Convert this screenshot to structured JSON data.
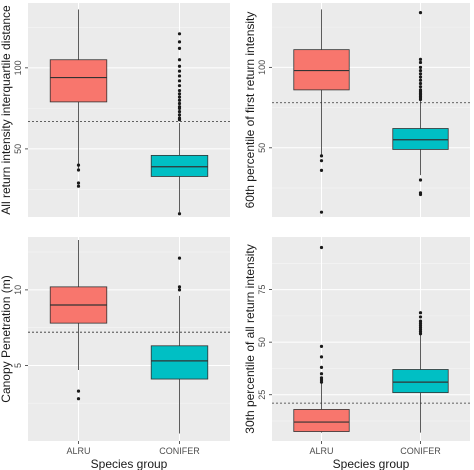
{
  "palette": {
    "ALRU": "#f8766d",
    "CONIFER": "#00bfc4"
  },
  "chart_data": [
    {
      "type": "box",
      "ylabel": "All return intensity interquartile distance",
      "xlabel": "",
      "categories": [
        "ALRU",
        "CONIFER"
      ],
      "yticks": [
        50,
        100
      ],
      "ylim": [
        8,
        140
      ],
      "reference_line": 67,
      "show_x_tick_labels": false,
      "boxes": [
        {
          "category": "ALRU",
          "whisker_low": 38,
          "q1": 79,
          "median": 94,
          "q3": 105,
          "whisker_high": 136,
          "outliers": [
            40,
            37,
            29,
            27
          ]
        },
        {
          "category": "CONIFER",
          "whisker_low": 11,
          "q1": 33,
          "median": 39,
          "q3": 46,
          "whisker_high": 66,
          "outliers": [
            121,
            116,
            112,
            105,
            101,
            98,
            95,
            92,
            89,
            86,
            84,
            82,
            80,
            78,
            76,
            75,
            73,
            71,
            69,
            68,
            10
          ]
        }
      ]
    },
    {
      "type": "box",
      "ylabel": "60th percentile of first return intensity",
      "xlabel": "",
      "categories": [
        "ALRU",
        "CONIFER"
      ],
      "yticks": [
        50,
        100
      ],
      "ylim": [
        7,
        140
      ],
      "reference_line": 78,
      "show_x_tick_labels": false,
      "boxes": [
        {
          "category": "ALRU",
          "whisker_low": 45,
          "q1": 86,
          "median": 98,
          "q3": 111,
          "whisker_high": 136,
          "outliers": [
            45,
            42,
            36,
            10
          ]
        },
        {
          "category": "CONIFER",
          "whisker_low": 33,
          "q1": 49,
          "median": 55,
          "q3": 62,
          "whisker_high": 79,
          "outliers": [
            134,
            105,
            103,
            100,
            98,
            96,
            94,
            92,
            90,
            88,
            86,
            85,
            84,
            83,
            82,
            81,
            80,
            30,
            22,
            21
          ]
        }
      ]
    },
    {
      "type": "box",
      "ylabel": "Canopy Penetration (m)",
      "xlabel": "Species group",
      "categories": [
        "ALRU",
        "CONIFER"
      ],
      "yticks": [
        5,
        10
      ],
      "ylim": [
        0,
        13.5
      ],
      "reference_line": 7.2,
      "show_x_tick_labels": true,
      "boxes": [
        {
          "category": "ALRU",
          "whisker_low": 4.7,
          "q1": 7.8,
          "median": 9.0,
          "q3": 10.2,
          "whisker_high": 13.3,
          "outliers": [
            3.3,
            2.8
          ]
        },
        {
          "category": "CONIFER",
          "whisker_low": 0.5,
          "q1": 4.1,
          "median": 5.3,
          "q3": 6.3,
          "whisker_high": 9.6,
          "outliers": [
            12.1,
            10.2,
            10.0
          ]
        }
      ]
    },
    {
      "type": "box",
      "ylabel": "30th percentile of all return intensity",
      "xlabel": "Species group",
      "categories": [
        "ALRU",
        "CONIFER"
      ],
      "yticks": [
        25,
        50,
        75
      ],
      "ylim": [
        3,
        100
      ],
      "reference_line": 21,
      "show_x_tick_labels": true,
      "boxes": [
        {
          "category": "ALRU",
          "whisker_low": 7,
          "q1": 7.5,
          "median": 12,
          "q3": 18,
          "whisker_high": 31,
          "outliers": [
            95,
            48,
            43,
            38,
            35,
            33,
            32,
            31
          ]
        },
        {
          "category": "CONIFER",
          "whisker_low": 7,
          "q1": 26,
          "median": 31,
          "q3": 37,
          "whisker_high": 54,
          "outliers": [
            64,
            62,
            60,
            59,
            58,
            57,
            56,
            55,
            54
          ]
        }
      ]
    }
  ]
}
